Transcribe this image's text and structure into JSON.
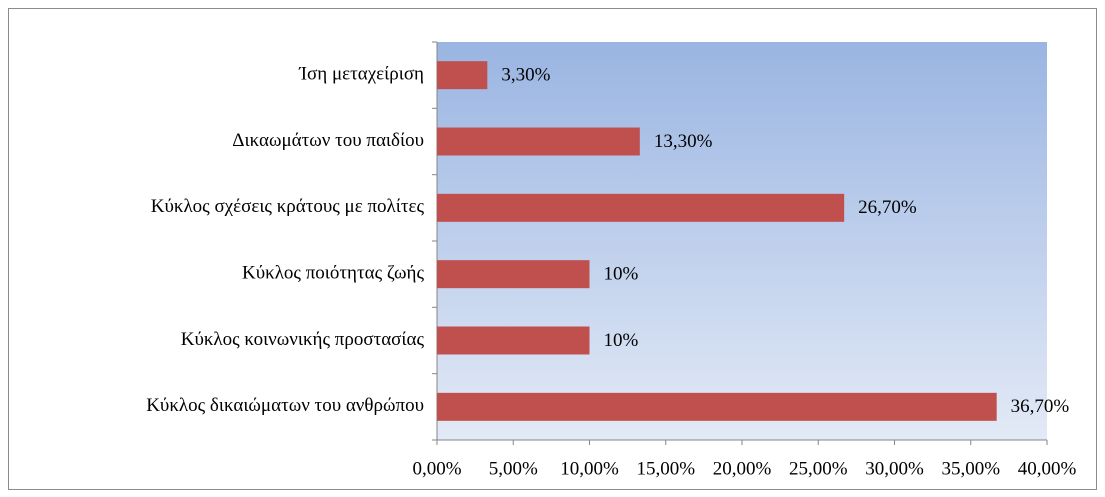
{
  "chart_data": {
    "type": "barh",
    "categories": [
      "Ίση μεταχείριση",
      "Δικαωμάτων του παιδίου",
      "Κύκλος σχέσεις κράτους με πολίτες",
      "Κύκλος ποιότητας ζωής",
      "Κύκλος κοινωνικής προστασίας",
      "Κύκλος δικαιώματων του ανθρώπου"
    ],
    "values": [
      3.3,
      13.3,
      26.7,
      10,
      10,
      36.7
    ],
    "value_labels": [
      "3,30%",
      "13,30%",
      "26,70%",
      "10%",
      "10%",
      "36,70%"
    ],
    "color": "#c0504d",
    "xlim": [
      0,
      40
    ],
    "xticks": [
      {
        "value": 0,
        "label": "0,00%"
      },
      {
        "value": 5,
        "label": "5,00%"
      },
      {
        "value": 10,
        "label": "10,00%"
      },
      {
        "value": 15,
        "label": "15,00%"
      },
      {
        "value": 20,
        "label": "20,00%"
      },
      {
        "value": 25,
        "label": "25,00%"
      },
      {
        "value": 30,
        "label": "30,00%"
      },
      {
        "value": 35,
        "label": "35,00%"
      },
      {
        "value": 40,
        "label": "40,00%"
      }
    ]
  }
}
